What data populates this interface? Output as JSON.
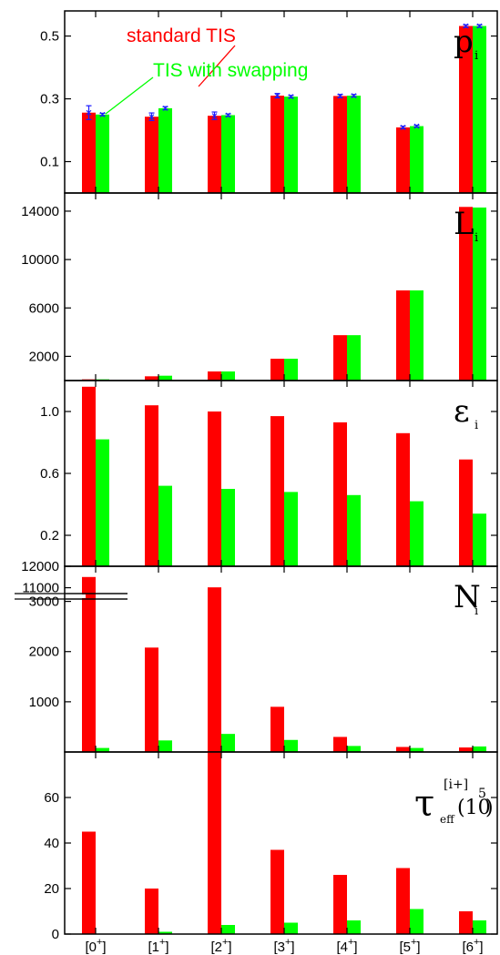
{
  "colors": {
    "standard": "#ff0000",
    "swapping": "#00ff00",
    "error": "#1a1aff",
    "axis": "#000000"
  },
  "legend": {
    "standard_label": "standard TIS",
    "swapping_label": "TIS with swapping"
  },
  "x_labels": [
    {
      "base": "[0",
      "sup": "+",
      "close": "]"
    },
    {
      "base": "[1",
      "sup": "+",
      "close": "]"
    },
    {
      "base": "[2",
      "sup": "+",
      "close": "]"
    },
    {
      "base": "[3",
      "sup": "+",
      "close": "]"
    },
    {
      "base": "[4",
      "sup": "+",
      "close": "]"
    },
    {
      "base": "[5",
      "sup": "+",
      "close": "]"
    },
    {
      "base": "[6",
      "sup": "+",
      "close": "]"
    }
  ],
  "chart_data": [
    {
      "type": "bar",
      "label": {
        "main": "p",
        "sub": "i"
      },
      "categories": [
        "[0+]",
        "[1+]",
        "[2+]",
        "[3+]",
        "[4+]",
        "[5+]",
        "[6+]"
      ],
      "ylim": [
        0,
        0.58
      ],
      "yticks": [
        0.1,
        0.3,
        0.5
      ],
      "ytick_labels": [
        "0.1",
        "0.3",
        "0.5"
      ],
      "series": [
        {
          "name": "standard TIS",
          "values": [
            0.256,
            0.243,
            0.246,
            0.31,
            0.309,
            0.209,
            0.532
          ],
          "errors": [
            0.022,
            0.012,
            0.012,
            0.007,
            0.005,
            0.004,
            0.004
          ]
        },
        {
          "name": "TIS with swapping",
          "values": [
            0.25,
            0.27,
            0.248,
            0.307,
            0.31,
            0.213,
            0.532
          ],
          "errors": [
            0.004,
            0.005,
            0.004,
            0.004,
            0.004,
            0.003,
            0.004
          ]
        }
      ]
    },
    {
      "type": "bar",
      "label": {
        "main": "L",
        "sub": "i"
      },
      "categories": [
        "[0+]",
        "[1+]",
        "[2+]",
        "[3+]",
        "[4+]",
        "[5+]",
        "[6+]"
      ],
      "ylim": [
        0,
        15500
      ],
      "yticks": [
        2000,
        6000,
        10000,
        14000
      ],
      "ytick_labels": [
        "2000",
        "6000",
        "10000",
        "14000"
      ],
      "series": [
        {
          "name": "standard TIS",
          "values": [
            100,
            350,
            750,
            1800,
            3750,
            7450,
            14350
          ]
        },
        {
          "name": "TIS with swapping",
          "values": [
            100,
            400,
            750,
            1800,
            3750,
            7450,
            14300
          ]
        }
      ]
    },
    {
      "type": "bar",
      "label": {
        "main": "ε",
        "sub": "i"
      },
      "categories": [
        "[0+]",
        "[1+]",
        "[2+]",
        "[3+]",
        "[4+]",
        "[5+]",
        "[6+]"
      ],
      "ylim": [
        0,
        1.2
      ],
      "yticks": [
        0.2,
        0.6,
        1.0
      ],
      "ytick_labels": [
        "0.2",
        "0.6",
        "1.0"
      ],
      "series": [
        {
          "name": "standard TIS",
          "values": [
            1.16,
            1.04,
            1.0,
            0.97,
            0.93,
            0.86,
            0.69
          ]
        },
        {
          "name": "TIS with swapping",
          "values": [
            0.82,
            0.52,
            0.5,
            0.48,
            0.46,
            0.42,
            0.34
          ]
        }
      ]
    },
    {
      "type": "bar",
      "label": {
        "main": "N",
        "sub": "i"
      },
      "categories": [
        "[0+]",
        "[1+]",
        "[2+]",
        "[3+]",
        "[4+]",
        "[5+]",
        "[6+]"
      ],
      "ylim": [
        0,
        3700
      ],
      "axis_break": {
        "lower_max": 3650,
        "upper_range": [
          10600,
          12000
        ]
      },
      "yticks": [
        1000,
        2000,
        3000
      ],
      "ytick_labels": [
        "1000",
        "2000",
        "3000"
      ],
      "upper_ticks": [
        11000,
        12000
      ],
      "upper_tick_labels": [
        "11000",
        "12000"
      ],
      "series": [
        {
          "name": "standard TIS",
          "values": [
            11500,
            2080,
            3280,
            900,
            300,
            100,
            90
          ]
        },
        {
          "name": "TIS with swapping",
          "values": [
            80,
            230,
            360,
            240,
            120,
            80,
            110
          ]
        }
      ]
    },
    {
      "type": "bar",
      "label": {
        "main": "τ",
        "sub": "eff",
        "sup": "[i+]",
        "unit": "(10",
        "unit_sup": "5",
        "unit_close": ")"
      },
      "categories": [
        "[0+]",
        "[1+]",
        "[2+]",
        "[3+]",
        "[4+]",
        "[5+]",
        "[6+]"
      ],
      "ylim": [
        0,
        80
      ],
      "yticks": [
        0,
        20,
        40,
        60
      ],
      "ytick_labels": [
        "0",
        "20",
        "40",
        "60"
      ],
      "series": [
        {
          "name": "standard TIS",
          "values": [
            45,
            20,
            80,
            37,
            26,
            29,
            10
          ]
        },
        {
          "name": "TIS with swapping",
          "values": [
            0,
            1,
            4,
            5,
            6,
            11,
            6
          ]
        }
      ]
    }
  ]
}
